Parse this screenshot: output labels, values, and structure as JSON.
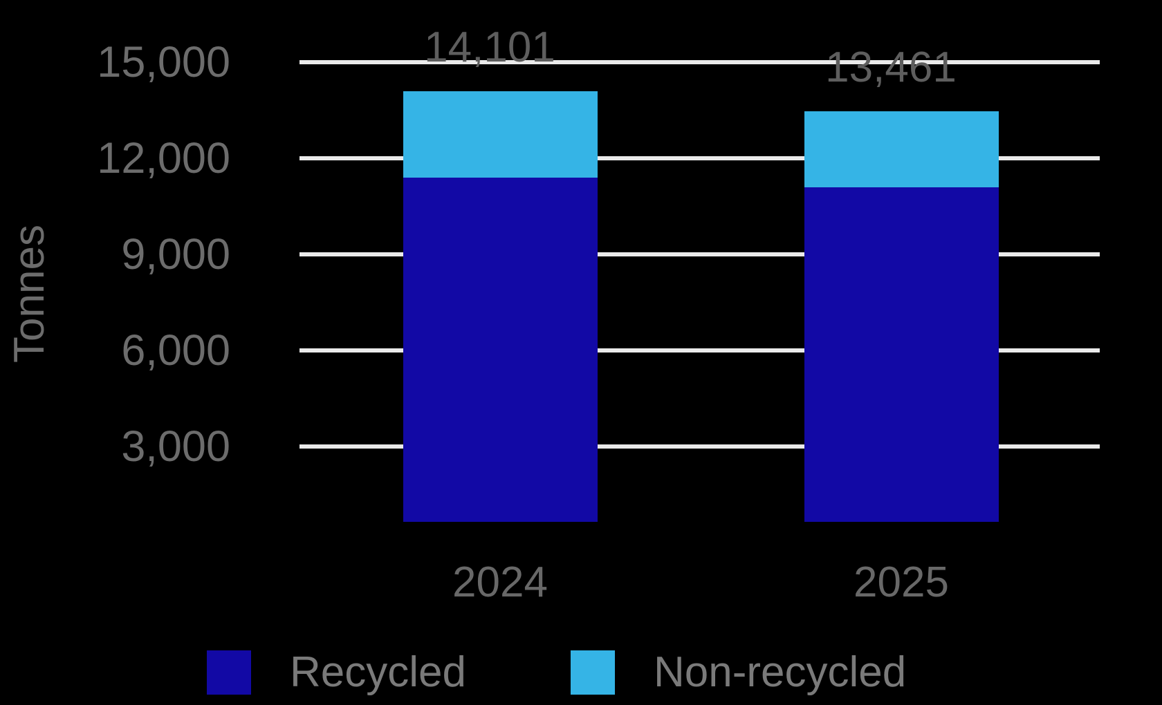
{
  "chart_data": {
    "type": "bar",
    "stacked": true,
    "ylabel": "Tonnes",
    "categories": [
      "2024",
      "2025"
    ],
    "series": [
      {
        "name": "Recycled",
        "color": "#1209A5",
        "values": [
          11400,
          11100
        ]
      },
      {
        "name": "Non-recycled",
        "color": "#35B4E6",
        "values": [
          2701,
          2361
        ]
      }
    ],
    "totals": [
      14101,
      13461
    ],
    "total_labels": [
      "14,101",
      "13,461"
    ],
    "y_ticks": [
      {
        "value": 3000,
        "label": "3,000"
      },
      {
        "value": 6000,
        "label": "6,000"
      },
      {
        "value": 9000,
        "label": "9,000"
      },
      {
        "value": 12000,
        "label": "12,000"
      },
      {
        "value": 15000,
        "label": "15,000"
      }
    ],
    "ylim": [
      0,
      15600
    ],
    "y_tick_interval": 3000,
    "grid": true,
    "legend_position": "bottom"
  },
  "colors": {
    "background": "#000000",
    "gridline": "#EAEAEA",
    "tick_text": "#6C6C6C",
    "value_text": "#5E5E5E",
    "xlabel_text": "#686868",
    "legend_text": "#7A7A7A"
  }
}
